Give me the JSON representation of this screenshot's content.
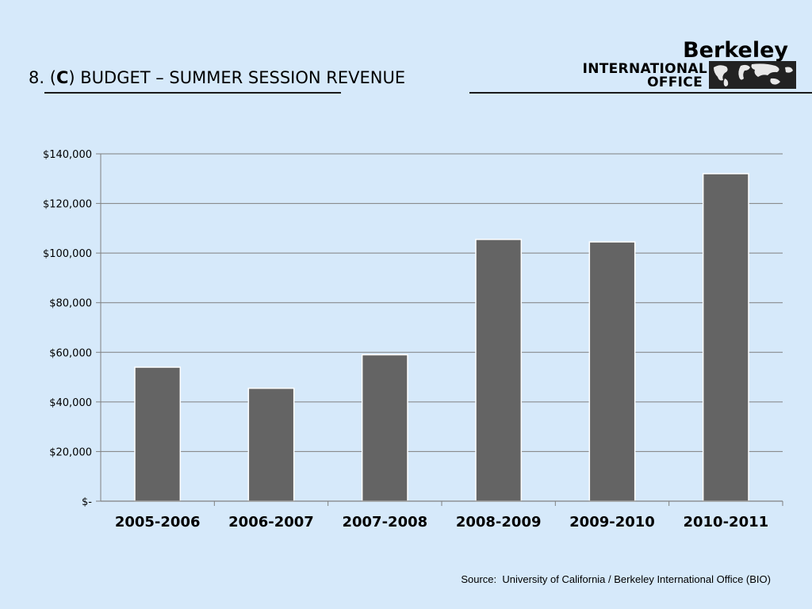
{
  "slide": {
    "number": "8.",
    "section_prefix": "(",
    "section_letter": "C",
    "section_suffix": ")",
    "title": "BUDGET – SUMMER SESSION REVENUE"
  },
  "logo": {
    "word": "Berkeley",
    "line1": "INTERNATIONAL",
    "line2": "OFFICE",
    "icon": "world-map-icon"
  },
  "source": "Source:  University of California / Berkeley International Office (BIO)",
  "colors": {
    "background": "#d6e9fa",
    "bar": "#646464",
    "gridline": "#7f7f7f"
  },
  "chart_data": {
    "type": "bar",
    "title": "",
    "xlabel": "",
    "ylabel": "",
    "categories": [
      "2005-2006",
      "2006-2007",
      "2007-2008",
      "2008-2009",
      "2009-2010",
      "2010-2011"
    ],
    "values": [
      54000,
      45500,
      59000,
      105500,
      104500,
      132000
    ],
    "ylim": [
      0,
      140000
    ],
    "yticks": [
      0,
      20000,
      40000,
      60000,
      80000,
      100000,
      120000,
      140000
    ],
    "ytick_labels": [
      "$-",
      "$20,000",
      "$40,000",
      "$60,000",
      "$80,000",
      "$100,000",
      "$120,000",
      "$140,000"
    ],
    "grid": true,
    "legend": "none"
  }
}
